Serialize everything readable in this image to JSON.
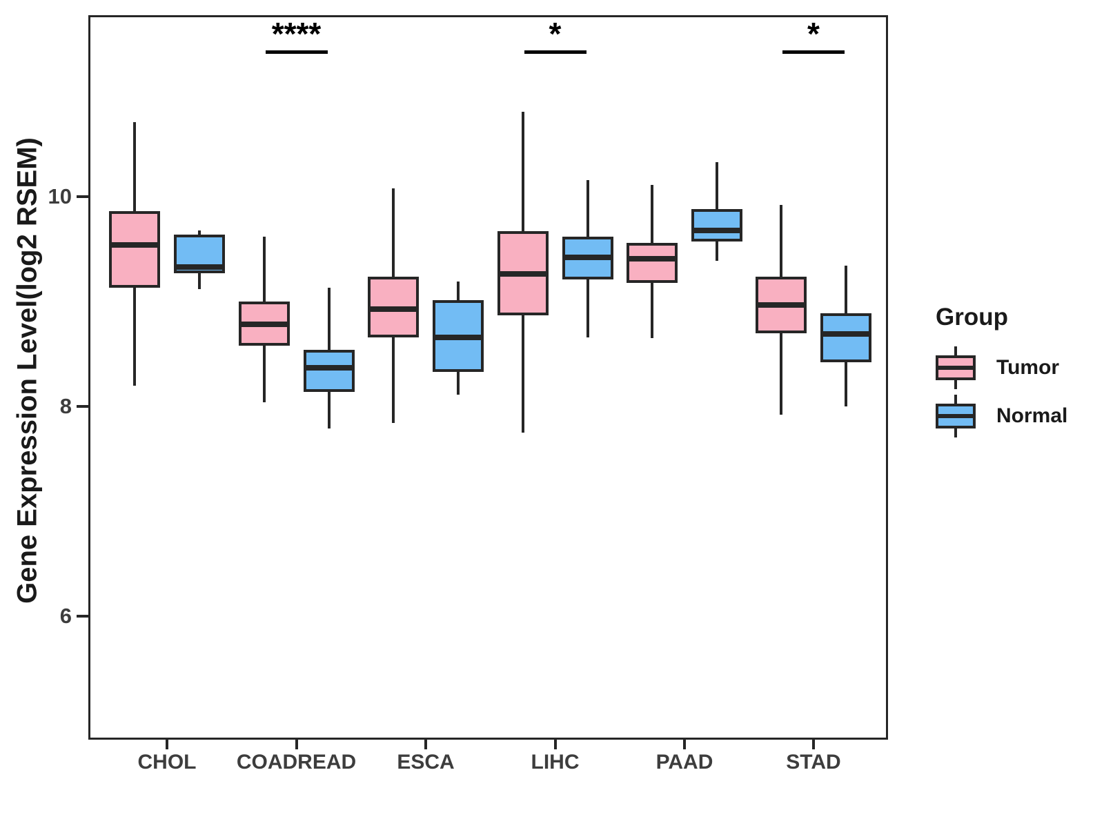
{
  "chart_data": {
    "type": "boxplot",
    "title": "",
    "xlabel": "",
    "ylabel": "Gene Expression Level(log2 RSEM)",
    "categories": [
      "CHOL",
      "COADREAD",
      "ESCA",
      "LIHC",
      "PAAD",
      "STAD"
    ],
    "groups": [
      "Tumor",
      "Normal"
    ],
    "y_ticks": [
      10,
      8,
      6
    ],
    "ylim": [
      4.8,
      11.7
    ],
    "grid": false,
    "legend_position": "right",
    "colors": {
      "Tumor": "#F9B0C1",
      "Normal": "#72BCF4",
      "line": "#262626"
    },
    "series": [
      {
        "category": "CHOL",
        "group": "Tumor",
        "whisker_low": 8.2,
        "q1": 9.13,
        "median": 9.54,
        "q3": 9.86,
        "whisker_high": 10.71
      },
      {
        "category": "CHOL",
        "group": "Normal",
        "whisker_low": 9.12,
        "q1": 9.27,
        "median": 9.33,
        "q3": 9.64,
        "whisker_high": 9.68
      },
      {
        "category": "COADREAD",
        "group": "Tumor",
        "whisker_low": 8.04,
        "q1": 8.58,
        "median": 8.78,
        "q3": 9.0,
        "whisker_high": 9.62
      },
      {
        "category": "COADREAD",
        "group": "Normal",
        "whisker_low": 7.79,
        "q1": 8.14,
        "median": 8.37,
        "q3": 8.54,
        "whisker_high": 9.13
      },
      {
        "category": "ESCA",
        "group": "Tumor",
        "whisker_low": 7.84,
        "q1": 8.66,
        "median": 8.93,
        "q3": 9.24,
        "whisker_high": 10.08
      },
      {
        "category": "ESCA",
        "group": "Normal",
        "whisker_low": 8.11,
        "q1": 8.33,
        "median": 8.66,
        "q3": 9.01,
        "whisker_high": 9.19
      },
      {
        "category": "LIHC",
        "group": "Tumor",
        "whisker_low": 7.75,
        "q1": 8.87,
        "median": 9.26,
        "q3": 9.67,
        "whisker_high": 10.81
      },
      {
        "category": "LIHC",
        "group": "Normal",
        "whisker_low": 8.66,
        "q1": 9.21,
        "median": 9.42,
        "q3": 9.62,
        "whisker_high": 10.16
      },
      {
        "category": "PAAD",
        "group": "Tumor",
        "whisker_low": 8.65,
        "q1": 9.18,
        "median": 9.41,
        "q3": 9.56,
        "whisker_high": 10.11
      },
      {
        "category": "PAAD",
        "group": "Normal",
        "whisker_low": 9.39,
        "q1": 9.57,
        "median": 9.68,
        "q3": 9.88,
        "whisker_high": 10.33
      },
      {
        "category": "STAD",
        "group": "Tumor",
        "whisker_low": 7.92,
        "q1": 8.7,
        "median": 8.97,
        "q3": 9.24,
        "whisker_high": 9.92
      },
      {
        "category": "STAD",
        "group": "Normal",
        "whisker_low": 8.0,
        "q1": 8.42,
        "median": 8.69,
        "q3": 8.89,
        "whisker_high": 9.34
      }
    ],
    "significance": [
      {
        "category": "COADREAD",
        "label": "****"
      },
      {
        "category": "LIHC",
        "label": "*"
      },
      {
        "category": "STAD",
        "label": "*"
      }
    ],
    "legend": {
      "title": "Group",
      "entries": [
        {
          "label": "Tumor"
        },
        {
          "label": "Normal"
        }
      ]
    }
  }
}
